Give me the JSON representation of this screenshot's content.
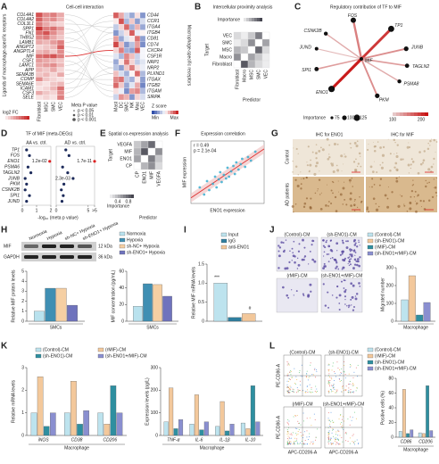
{
  "A": {
    "letter": "A",
    "title": "Cell-cell interaction",
    "y_label": "Ligands of macrophage-specific receptors",
    "r_label": "Macrophage-specific receptors",
    "ligands": [
      "COL4A1",
      "COL4A2",
      "COL3L1",
      "SPP1",
      "FN1",
      "THBS2",
      "LAMB1",
      "ANGPT2",
      "ANGPTL4",
      "MIF",
      "CSF1",
      "LAMC1",
      "APP",
      "SEMA3B",
      "COMP",
      "SEMA6E",
      "ICAM1",
      "CSF3",
      "SELE"
    ],
    "cells": [
      "Fibroblast",
      "MSC",
      "SMC",
      "VEC"
    ],
    "fc": [
      [
        1.2,
        0.8,
        0.9,
        0.6
      ],
      [
        1.1,
        0.7,
        0.8,
        0.5
      ],
      [
        0.9,
        0.6,
        0.4,
        0.3
      ],
      [
        1.4,
        0.9,
        1.0,
        0.7
      ],
      [
        1.0,
        1.2,
        0.8,
        0.5
      ],
      [
        0.8,
        0.9,
        0.6,
        0.4
      ],
      [
        0.6,
        0.5,
        0.7,
        0.9
      ],
      [
        0.3,
        0.4,
        0.5,
        1.1
      ],
      [
        0.5,
        0.6,
        0.4,
        0.8
      ],
      [
        1.0,
        1.1,
        1.2,
        0.9
      ],
      [
        0.7,
        0.6,
        0.5,
        0.4
      ],
      [
        0.6,
        0.7,
        0.8,
        0.5
      ],
      [
        0.5,
        0.4,
        0.6,
        0.3
      ],
      [
        0.4,
        0.5,
        0.3,
        0.6
      ],
      [
        0.8,
        0.4,
        0.3,
        0.2
      ],
      [
        0.3,
        0.2,
        0.4,
        0.5
      ],
      [
        0.2,
        0.3,
        0.5,
        1.0
      ],
      [
        0.6,
        0.4,
        0.3,
        0.8
      ],
      [
        0.2,
        0.3,
        0.2,
        0.9
      ]
    ],
    "fc_lim": [
      0,
      1.5
    ],
    "fc_title": "log2 FC",
    "p_title": "Meta P value",
    "p_levels": [
      "p < 0.05",
      "p < 0.01",
      "p < 0.001"
    ],
    "receptors": [
      "CD44",
      "CCR1",
      "ITGA4",
      "ITGB4",
      "CD81",
      "CD74",
      "CXCR4",
      "CSF1R",
      "NRP1",
      "NRP2",
      "PLXND1",
      "ITGAX",
      "ITGB2",
      "ITGAM",
      "SIRPA"
    ],
    "groups": [
      "Mast",
      "DC",
      "SMC",
      "NK",
      "Mac",
      "VEC"
    ],
    "z": [
      [
        1.5,
        0.8,
        -0.5,
        -1.0,
        0.3,
        -1.2
      ],
      [
        0.2,
        1.6,
        -0.8,
        0.5,
        -1.1,
        -0.4
      ],
      [
        -0.6,
        0.4,
        1.4,
        -0.9,
        0.7,
        -1.0
      ],
      [
        -1.2,
        -0.5,
        0.3,
        1.5,
        -0.2,
        0.1
      ],
      [
        0.9,
        -1.0,
        -0.3,
        0.2,
        1.3,
        -1.1
      ],
      [
        1.7,
        0.6,
        -1.2,
        -0.7,
        0.9,
        -1.3
      ],
      [
        0.4,
        1.2,
        -0.9,
        -1.1,
        1.5,
        -0.1
      ],
      [
        -0.3,
        -0.8,
        1.1,
        0.6,
        -0.5,
        -0.1
      ],
      [
        -1.0,
        0.2,
        1.3,
        0.4,
        -0.6,
        -0.3
      ],
      [
        -0.7,
        -1.1,
        0.5,
        1.2,
        0.3,
        -0.2
      ],
      [
        0.6,
        -0.4,
        -0.9,
        0.1,
        1.4,
        -0.8
      ],
      [
        1.1,
        1.3,
        -0.6,
        -0.9,
        0.2,
        -1.1
      ],
      [
        1.4,
        0.5,
        -1.0,
        -0.3,
        0.8,
        -1.4
      ],
      [
        0.3,
        -0.2,
        -1.3,
        0.9,
        1.1,
        -0.8
      ],
      [
        -0.5,
        1.0,
        0.7,
        -1.2,
        0.4,
        -0.4
      ]
    ],
    "z_lim": [
      -2,
      2
    ],
    "z_title": "Z score",
    "z_min": "Min",
    "z_max": "Max"
  },
  "B": {
    "letter": "B",
    "title": "Intercellular proximity analysis",
    "legend_title": "Importance",
    "y_label": "Target",
    "x_label": "Predictor",
    "rows": [
      "VEC",
      "SMC",
      "MSC",
      "Macro",
      "Fibroblast"
    ],
    "cols": [
      "Fibroblast",
      "Macro",
      "MSC",
      "SMC",
      "VEC"
    ],
    "matrix": [
      [
        0.2,
        0.1,
        0.3,
        0.7,
        0
      ],
      [
        0.1,
        0.2,
        0.6,
        0,
        0.5
      ],
      [
        0.4,
        0.3,
        0,
        0.8,
        0.2
      ],
      [
        0.6,
        0,
        0.5,
        0.3,
        0.1
      ],
      [
        0,
        0.9,
        0.4,
        0.2,
        0.1
      ]
    ],
    "lim": [
      0,
      1
    ]
  },
  "C": {
    "letter": "C",
    "title": "Regulatory contribution of TF to MIF",
    "center": "MIF",
    "nodes": [
      {
        "label": "FOS",
        "importance": 110,
        "contribution": 150
      },
      {
        "label": "TP1",
        "importance": 120,
        "contribution": 200
      },
      {
        "label": "CSNK2B",
        "importance": 90,
        "contribution": 120
      },
      {
        "label": "JUND",
        "importance": 85,
        "contribution": 110
      },
      {
        "label": "SPI1",
        "importance": 95,
        "contribution": 130
      },
      {
        "label": "ENO1",
        "importance": 125,
        "contribution": 220
      },
      {
        "label": "PKM",
        "importance": 100,
        "contribution": 140
      },
      {
        "label": "PSMA8",
        "importance": 90,
        "contribution": 120
      },
      {
        "label": "TAGLN2",
        "importance": 95,
        "contribution": 130
      },
      {
        "label": "JUNB",
        "importance": 100,
        "contribution": 140
      }
    ],
    "size_title": "Importance",
    "size_ticks": [
      75,
      100,
      125
    ],
    "color_lim": [
      100,
      225
    ],
    "color_ticks": [
      100,
      200
    ]
  },
  "D": {
    "letter": "D",
    "title": "TF of MIF (meta-DEGs)",
    "x_label": "-log₁₀ (meta p value)",
    "tfs": [
      "TP1",
      "FOS",
      "ENO1",
      "PSMA6",
      "TAGLN2",
      "JUNB",
      "PKM",
      "CSNK2B",
      "SPI1",
      "JUND"
    ],
    "panels": [
      {
        "title": "AA vs. ctrl.",
        "values": [
          0.3,
          0.5,
          1.92,
          0.4,
          0.6,
          0.2,
          0.3,
          0.2,
          0.5,
          0.3
        ],
        "p_labels": [
          null,
          null,
          "1.2e-02",
          null,
          null,
          null,
          null,
          null,
          null,
          null
        ],
        "xlim": [
          0,
          2
        ],
        "xticks": [
          0,
          1,
          2
        ]
      },
      {
        "title": "AD vs. ctrl.",
        "values": [
          1.5,
          2.0,
          10.77,
          1.0,
          1.8,
          2.64,
          1.2,
          0.8,
          1.1,
          0.9
        ],
        "p_labels": [
          null,
          null,
          "1.7e-11",
          null,
          null,
          "2.3e-03",
          null,
          null,
          null,
          null
        ],
        "xlim": [
          0,
          6
        ],
        "xticks": [
          0,
          5,
          {
            "value": 6,
            "label": ">5"
          }
        ]
      }
    ]
  },
  "E": {
    "letter": "E",
    "title": "Spatial co-expression analysis",
    "y_label": "Target",
    "x_label": "Predictor",
    "legend_title": "Importance",
    "rows": [
      "VEGFA",
      "MIF",
      "ENO1",
      "CP"
    ],
    "cols": [
      "CP",
      "ENO1",
      "MIF",
      "VEGFA"
    ],
    "matrix": [
      [
        0.3,
        0.5,
        0.8,
        0
      ],
      [
        0.4,
        0.9,
        0,
        0.6
      ],
      [
        0.5,
        0,
        0.7,
        0.3
      ],
      [
        0,
        0.4,
        0.6,
        0.2
      ]
    ],
    "lim": [
      0,
      1
    ],
    "legend_ticks": [
      0.4,
      0.8
    ]
  },
  "F": {
    "letter": "F",
    "title": "Expression correlation",
    "r_text": "r = 0.49",
    "p_text": "p = 2.1e-04",
    "x_label": "ENO1 expression",
    "y_label": "MIF expression",
    "x": [
      0.12,
      0.18,
      0.22,
      0.25,
      0.3,
      0.33,
      0.35,
      0.38,
      0.4,
      0.42,
      0.45,
      0.48,
      0.5,
      0.52,
      0.55,
      0.58,
      0.6,
      0.62,
      0.65,
      0.68,
      0.7,
      0.74,
      0.78,
      0.82,
      0.88
    ],
    "y": [
      0.38,
      0.3,
      0.45,
      0.35,
      0.42,
      0.5,
      0.38,
      0.47,
      0.55,
      0.44,
      0.52,
      0.48,
      0.6,
      0.5,
      0.56,
      0.62,
      0.53,
      0.66,
      0.58,
      0.64,
      0.7,
      0.61,
      0.72,
      0.68,
      0.78
    ],
    "xlim": [
      0,
      1
    ],
    "ylim": [
      0.2,
      0.9
    ]
  },
  "G": {
    "letter": "G",
    "cols": [
      "IHC for ENO1",
      "IHC for MIF"
    ],
    "rows": [
      "Control",
      "AD patients"
    ]
  },
  "H": {
    "letter": "H",
    "lanes": [
      "Normoxia",
      "Hypoxia",
      "sh-NC+ Hypoxia",
      "sh-ENO1+ Hypoxia"
    ],
    "bands": [
      "MIF",
      "GAPDH"
    ],
    "sizes": [
      "12 kDa",
      "36 kDa"
    ],
    "charts": [
      {
        "type": "bar",
        "y_label": "Relative MIF protein levels",
        "x_label": "SMCs",
        "categories": [
          null
        ],
        "series": [
          {
            "name": "Normoxia",
            "color": "#b9e2ee",
            "values": [
              1.0
            ]
          },
          {
            "name": "Hypoxia",
            "color": "#3f8fb3",
            "values": [
              3.3
            ]
          },
          {
            "name": "sh-NC+ Hypoxia",
            "color": "#f5cfa3",
            "values": [
              3.3
            ]
          },
          {
            "name": "sh-ENO1+ Hypoxia",
            "color": "#6f73bd",
            "values": [
              1.6
            ]
          }
        ],
        "ylim": [
          0,
          5
        ],
        "yticks": [
          0,
          1,
          2,
          3,
          4,
          5
        ]
      },
      {
        "type": "bar",
        "y_label": "MIF concentration (pg/mL)",
        "x_label": "SMCs",
        "categories": [
          null
        ],
        "series": [
          {
            "color": "#b9e2ee",
            "values": [
              18
            ]
          },
          {
            "color": "#3f8fb3",
            "values": [
              45
            ]
          },
          {
            "color": "#f5cfa3",
            "values": [
              44
            ]
          },
          {
            "color": "#6f73bd",
            "values": [
              30
            ]
          }
        ],
        "ylim": [
          0,
          60
        ],
        "yticks": [
          0,
          20,
          40,
          60
        ]
      }
    ]
  },
  "I": {
    "letter": "I",
    "chart": {
      "type": "bar",
      "y_label": "Relative MIF mRNA levels",
      "categories": [
        null
      ],
      "series": [
        {
          "name": "Input",
          "color": "#bde3ee",
          "values": [
            1.0
          ]
        },
        {
          "name": "IgG",
          "color": "#2f7f9f",
          "values": [
            0.1
          ]
        },
        {
          "name": "anti-ENO1",
          "color": "#f2c79a",
          "values": [
            0.2
          ]
        }
      ],
      "ylim": [
        0,
        1.5
      ],
      "yticks": [
        0,
        0.5,
        {
          "value": 1,
          "label": "1.0"
        },
        1.5
      ]
    },
    "annotations": [
      "***",
      "#"
    ]
  },
  "J": {
    "letter": "J",
    "images": [
      "(Control)-CM",
      "(sh-ENO1)-CM",
      "(rMIF)-CM",
      "(sh-ENO1+rMIF)-CM"
    ],
    "chart": {
      "type": "bar",
      "y_label": "Migrated number",
      "x_label": "Macrophage",
      "categories": [
        null
      ],
      "series": [
        {
          "name": "(Control)-CM",
          "color": "#bde3ee",
          "values": [
            120
          ]
        },
        {
          "name": "(sh-ENO1)-CM",
          "color": "#f3c89b",
          "values": [
            255
          ]
        },
        {
          "name": "(rMIF)-CM",
          "color": "#2e8fa0",
          "values": [
            35
          ]
        },
        {
          "name": "(sh-ENO1+rMIF)-CM",
          "color": "#8a8fd0",
          "values": [
            105
          ]
        }
      ],
      "ylim": [
        0,
        300
      ],
      "yticks": [
        0,
        100,
        200,
        300
      ]
    }
  },
  "K": {
    "letter": "K",
    "charts": [
      {
        "type": "bar",
        "y_label": "Relative mRNA levels",
        "x_label": "Macrophage",
        "categories": [
          "iNOS",
          "CD38",
          "CD206"
        ],
        "series": [
          {
            "name": "(Control)-CM",
            "color": "#bde3ee",
            "values": [
              1,
              1,
              1
            ]
          },
          {
            "name": "(rMIF)-CM",
            "color": "#f3c89b",
            "values": [
              2.6,
              2.4,
              0.5
            ]
          },
          {
            "name": "(sh-ENO1)-CM",
            "color": "#2e8fa0",
            "values": [
              0.4,
              0.5,
              2.2
            ]
          },
          {
            "name": "(sh-ENO1+rMIF)-CM",
            "color": "#8a8fd0",
            "values": [
              1.0,
              1.1,
              1.0
            ]
          }
        ],
        "ylim": [
          0,
          3
        ],
        "yticks": [
          0,
          1,
          2,
          3
        ]
      },
      {
        "type": "bar",
        "y_label": "Expression levels (pg/L)",
        "x_label": "Macrophage",
        "categories": [
          "TNF-α",
          "IL-6",
          "IL-1β",
          "IL-10"
        ],
        "series": [
          {
            "color": "#bde3ee",
            "values": [
              60,
              50,
              40,
              55
            ]
          },
          {
            "color": "#f3c89b",
            "values": [
              210,
              180,
              150,
              30
            ]
          },
          {
            "color": "#2e8fa0",
            "values": [
              30,
              25,
              20,
              220
            ]
          },
          {
            "color": "#8a8fd0",
            "values": [
              70,
              60,
              50,
              60
            ]
          }
        ],
        "ylim": [
          0,
          300
        ],
        "yticks": [
          0,
          100,
          200,
          300
        ]
      }
    ]
  },
  "L": {
    "letter": "L",
    "plots": [
      "(Control)-CM",
      "(sh-ENO1)-CM",
      "(rMIF)-CM",
      "(sh-ENO1+rMIF)-CM"
    ],
    "y_label": "PE-CD86-A",
    "x_label": "APC-CD206-A",
    "chart": {
      "type": "bar",
      "y_label": "Positive cells (%)",
      "x_label": "Macrophage",
      "categories": [
        "CD86",
        "CD206"
      ],
      "series": [
        {
          "name": "(Control)-CM",
          "color": "#bde3ee",
          "values": [
            8,
            6
          ]
        },
        {
          "name": "(rMIF)-CM",
          "color": "#f3c89b",
          "values": [
            65,
            5
          ]
        },
        {
          "name": "(sh-ENO1)-CM",
          "color": "#2e8fa0",
          "values": [
            5,
            70
          ]
        },
        {
          "name": "(sh-ENO1+rMIF)-CM",
          "color": "#8a8fd0",
          "values": [
            10,
            9
          ]
        }
      ],
      "ylim": [
        0,
        80
      ],
      "yticks": [
        0,
        20,
        40,
        60,
        80
      ]
    }
  }
}
